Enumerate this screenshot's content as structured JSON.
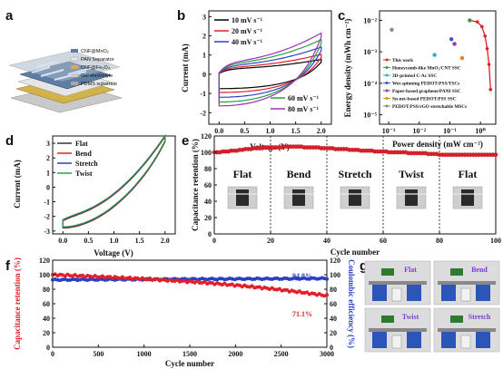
{
  "panels": {
    "a": {
      "label": "a",
      "layers": [
        "CNF@MnO₂",
        "PAN Separator",
        "CNF@Fe₃O₄",
        "Gel electrolyte",
        "PDMS substrate"
      ],
      "colors": [
        "#5b7fa6",
        "#e6e6e6",
        "#d4b24a",
        "#c9c9c9",
        "#a8a8a8"
      ]
    },
    "b": {
      "label": "b",
      "xlabel": "Voltage (V)",
      "ylabel": "Current (mA)",
      "xticks": [
        "0.0",
        "0.5",
        "1.0",
        "1.5",
        "2.0"
      ],
      "yticks": [
        "-2",
        "-1",
        "0",
        "1",
        "2",
        "3"
      ],
      "legend_top": [
        "10 mV s⁻¹",
        "20 mV s⁻¹",
        "40 mV s⁻¹"
      ],
      "legend_bottom": [
        "60 mV s⁻¹",
        "80 mV s⁻¹"
      ]
    },
    "c": {
      "label": "c",
      "xlabel": "Power density (mW cm⁻²)",
      "ylabel": "Energy density (mWh cm⁻²)",
      "xticks": [
        "10⁻³",
        "10⁻²",
        "10⁻¹",
        "10⁰"
      ],
      "yticks": [
        "10⁻²",
        "10⁻³",
        "10⁻⁴",
        "10⁻⁵"
      ],
      "legend": [
        "This work",
        "Honeycomb-like MnO₂/CNT SSC",
        "3D-printed C-Ac SSC",
        "Wet-spinning PEDOT:PSS/TSCs",
        "Paper-based graphene/PANI SSC",
        "Sn-net-based PEDOT:PSS SSC",
        "PEDOT:PSS/rGO stretchable MSCs"
      ]
    },
    "d": {
      "label": "d",
      "xlabel": "Voltage (V)",
      "ylabel": "Current (mA)",
      "xticks": [
        "0.0",
        "0.5",
        "1.0",
        "1.5",
        "2.0"
      ],
      "yticks": [
        "-3",
        "-2",
        "-1",
        "0",
        "1",
        "2",
        "3"
      ],
      "legend": [
        "Flat",
        "Bend",
        "Stretch",
        "Twist"
      ]
    },
    "e": {
      "label": "e",
      "xlabel": "Cycle number",
      "ylabel": "Capacitance retention (%)",
      "xticks": [
        "0",
        "20",
        "40",
        "60",
        "80",
        "100"
      ],
      "yticks": [
        "0",
        "20",
        "40",
        "60",
        "80",
        "100",
        "120"
      ],
      "states": [
        "Flat",
        "Bend",
        "Stretch",
        "Twist",
        "Flat"
      ]
    },
    "f": {
      "label": "f",
      "xlabel": "Cycle number",
      "ylabel": "Capacitance retention (%)",
      "ylabel2": "Coulombic efficiency (%)",
      "xticks": [
        "0",
        "500",
        "1000",
        "1500",
        "2000",
        "2500",
        "3000"
      ],
      "yticks": [
        "0",
        "20",
        "40",
        "60",
        "80",
        "100",
        "120"
      ],
      "annot_blue": "94.8%",
      "annot_red": "71.1%"
    },
    "g": {
      "label": "g",
      "photos": [
        "Flat",
        "Bend",
        "Twist",
        "Stretch"
      ]
    }
  },
  "chart_data": [
    {
      "panel": "b",
      "type": "line",
      "xlim": [
        -0.2,
        2.2
      ],
      "ylim": [
        -2.6,
        3.3
      ],
      "series": [
        {
          "name": "10 mV s⁻¹",
          "color": "#000000",
          "amp": 0.75,
          "skew": 1.05
        },
        {
          "name": "20 mV s⁻¹",
          "color": "#e0202a",
          "amp": 0.95,
          "skew": 1.15
        },
        {
          "name": "40 mV s⁻¹",
          "color": "#2b3fc4",
          "amp": 1.2,
          "skew": 1.3
        },
        {
          "name": "60 mV s⁻¹",
          "color": "#2e9e3e",
          "amp": 1.45,
          "skew": 1.4
        },
        {
          "name": "80 mV s⁻¹",
          "color": "#9b30b8",
          "amp": 1.65,
          "skew": 1.5
        }
      ]
    },
    {
      "panel": "c",
      "type": "scatter",
      "log": true,
      "xlim": [
        -3.3,
        0.5
      ],
      "ylim": [
        -5.3,
        -1.7
      ],
      "series": [
        {
          "name": "This work",
          "color": "#e0202a",
          "line": true,
          "points": [
            [
              -0.35,
              -2.0
            ],
            [
              -0.1,
              -2.05
            ],
            [
              0.05,
              -2.2
            ],
            [
              0.15,
              -2.5
            ],
            [
              0.22,
              -2.9
            ],
            [
              0.28,
              -3.4
            ],
            [
              0.33,
              -4.2
            ]
          ]
        },
        {
          "name": "Honeycomb-like MnO₂/CNT SSC",
          "color": "#2e9e3e",
          "points": [
            [
              -0.35,
              -2.0
            ]
          ]
        },
        {
          "name": "3D-printed C-Ac SSC",
          "color": "#2ab0c8",
          "points": [
            [
              -1.5,
              -3.1
            ]
          ]
        },
        {
          "name": "Wet-spinning PEDOT:PSS/TSCs",
          "color": "#3a55c8",
          "points": [
            [
              -0.95,
              -2.6
            ]
          ]
        },
        {
          "name": "Paper-based graphene/PANI SSC",
          "color": "#9b30b8",
          "points": [
            [
              -0.85,
              -2.75
            ]
          ]
        },
        {
          "name": "Sn-net-based PEDOT:PSS SSC",
          "color": "#e08a20",
          "points": [
            [
              -0.6,
              -3.2
            ]
          ]
        },
        {
          "name": "PEDOT:PSS/rGO stretchable MSCs",
          "color": "#888888",
          "points": [
            [
              -2.9,
              -2.3
            ]
          ]
        }
      ]
    },
    {
      "panel": "d",
      "type": "line",
      "xlim": [
        -0.2,
        2.2
      ],
      "ylim": [
        -3.2,
        3.5
      ],
      "series": [
        {
          "name": "Flat",
          "color": "#333333"
        },
        {
          "name": "Bend",
          "color": "#e0202a"
        },
        {
          "name": "Stretch",
          "color": "#2b3fc4"
        },
        {
          "name": "Twist",
          "color": "#2e9e3e"
        }
      ]
    },
    {
      "panel": "e",
      "type": "scatter",
      "xlim": [
        0,
        100
      ],
      "ylim": [
        0,
        120
      ],
      "dividers": [
        20,
        40,
        60,
        80
      ],
      "series": [
        {
          "name": "retention",
          "color": "#e0202a",
          "values": [
            100,
            100,
            100,
            101,
            101,
            101,
            102,
            102,
            102,
            103,
            103,
            104,
            104,
            104,
            105,
            105,
            105,
            105,
            106,
            106,
            106,
            106,
            106,
            106,
            106,
            107,
            107,
            107,
            107,
            107,
            107,
            107,
            106,
            106,
            106,
            106,
            106,
            106,
            105,
            105,
            105,
            105,
            105,
            104,
            104,
            104,
            104,
            104,
            103,
            103,
            103,
            103,
            102,
            102,
            102,
            102,
            102,
            101,
            101,
            101,
            101,
            101,
            100,
            100,
            100,
            100,
            100,
            100,
            100,
            99,
            99,
            99,
            99,
            99,
            99,
            99,
            98,
            98,
            98,
            98,
            97,
            97,
            97,
            97,
            97,
            97,
            97,
            97,
            97,
            97,
            97,
            97,
            97,
            97,
            97,
            97,
            97,
            97,
            97,
            97,
            97
          ]
        }
      ]
    },
    {
      "panel": "f",
      "type": "scatter",
      "xlim": [
        0,
        3000
      ],
      "ylim": [
        0,
        120
      ],
      "series": [
        {
          "name": "Capacitance retention",
          "color": "#e0202a",
          "start": 100,
          "end": 71.1
        },
        {
          "name": "Coulombic efficiency",
          "color": "#2b3fc4",
          "start": 93,
          "end": 94.8
        }
      ]
    }
  ]
}
